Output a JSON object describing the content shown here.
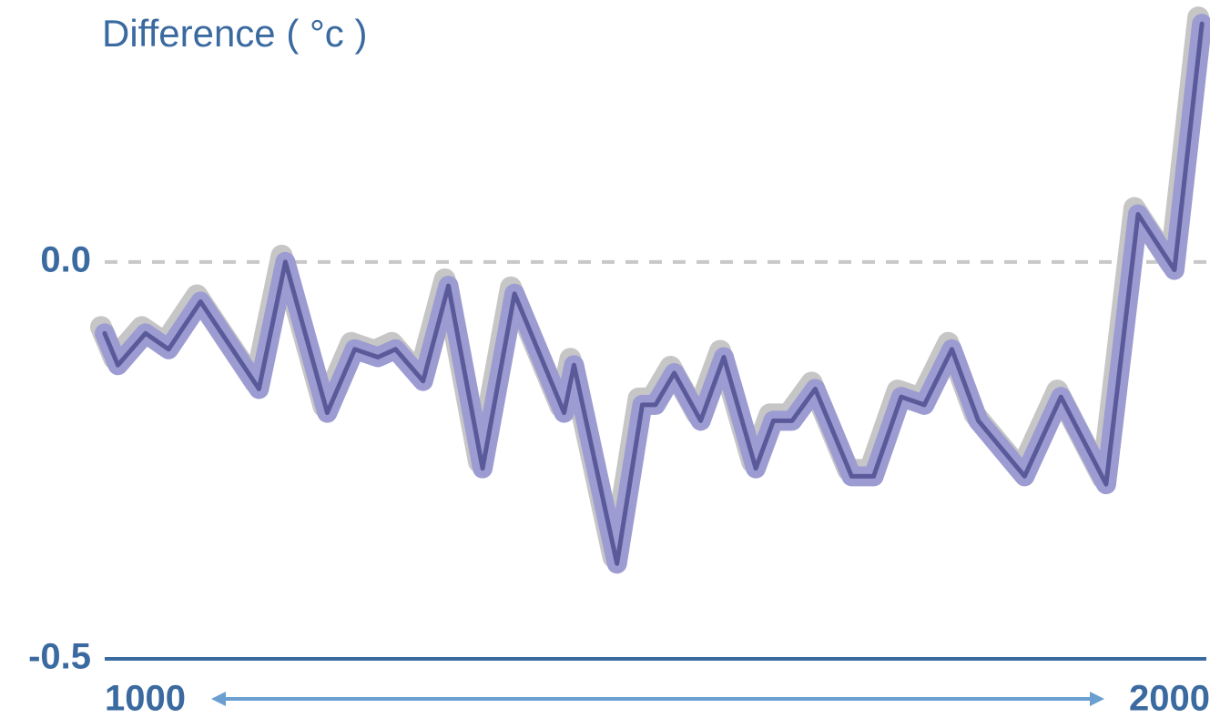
{
  "chart_data": {
    "type": "line",
    "title": "Difference ( °c )",
    "x": [
      1000,
      1012,
      1037,
      1058,
      1087,
      1140,
      1164,
      1202,
      1227,
      1248,
      1264,
      1289,
      1312,
      1343,
      1372,
      1417,
      1426,
      1465,
      1488,
      1500,
      1517,
      1541,
      1562,
      1591,
      1607,
      1624,
      1645,
      1678,
      1698,
      1723,
      1744,
      1769,
      1793,
      1835,
      1868,
      1909,
      1938,
      1971,
      1996
    ],
    "series": [
      {
        "color": "#5a5a9a",
        "values": [
          -0.09,
          -0.13,
          -0.09,
          -0.11,
          -0.05,
          -0.16,
          0.0,
          -0.19,
          -0.11,
          -0.12,
          -0.11,
          -0.15,
          -0.03,
          -0.26,
          -0.04,
          -0.19,
          -0.13,
          -0.38,
          -0.18,
          -0.18,
          -0.14,
          -0.2,
          -0.12,
          -0.26,
          -0.2,
          -0.2,
          -0.16,
          -0.27,
          -0.27,
          -0.17,
          -0.18,
          -0.11,
          -0.2,
          -0.27,
          -0.17,
          -0.28,
          0.06,
          -0.01,
          0.3
        ]
      }
    ],
    "xlim": [
      1000,
      2000
    ],
    "xticks": [
      1000,
      2000
    ],
    "ylim": [
      -0.5,
      0.33
    ],
    "yticks": [
      -0.5,
      {
        "value": 0,
        "label": "0.0"
      }
    ]
  }
}
